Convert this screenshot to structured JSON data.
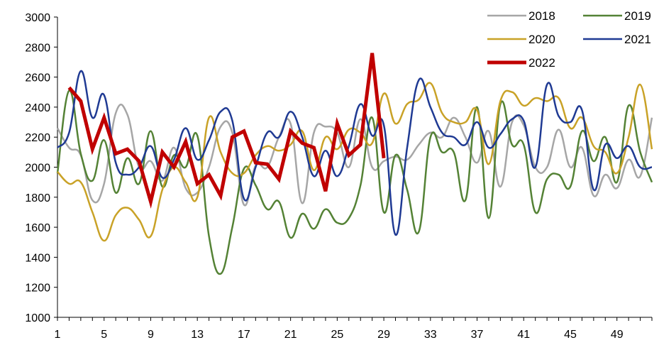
{
  "chart_data": {
    "type": "line",
    "title": "",
    "xlabel": "",
    "ylabel": "",
    "ylim": [
      1000,
      3000
    ],
    "yticks": [
      1000,
      1200,
      1400,
      1600,
      1800,
      2000,
      2200,
      2400,
      2600,
      2800,
      3000
    ],
    "xlim": [
      1,
      52
    ],
    "xticks": [
      1,
      5,
      9,
      13,
      17,
      21,
      25,
      29,
      33,
      37,
      41,
      45,
      49
    ],
    "grid": false,
    "legend": "top-right",
    "series": [
      {
        "name": "2018",
        "color": "#a6a6a6",
        "width": 2.5,
        "smooth": true,
        "x": [
          1,
          2,
          3,
          4,
          5,
          6,
          7,
          8,
          9,
          10,
          11,
          12,
          13,
          14,
          15,
          16,
          17,
          18,
          19,
          20,
          21,
          22,
          23,
          24,
          25,
          26,
          27,
          28,
          29,
          30,
          31,
          32,
          33,
          34,
          35,
          36,
          37,
          38,
          39,
          40,
          41,
          42,
          43,
          44,
          45,
          46,
          47,
          48,
          49,
          50,
          51,
          52
        ],
        "values": [
          2260,
          2130,
          2080,
          1780,
          1890,
          2360,
          2350,
          2000,
          2040,
          1910,
          2130,
          1860,
          1830,
          2000,
          2270,
          2230,
          1750,
          2010,
          2000,
          2200,
          2290,
          1760,
          2230,
          2270,
          2230,
          2000,
          2320,
          2000,
          2040,
          2070,
          2050,
          2150,
          2230,
          2200,
          2330,
          2200,
          2030,
          2240,
          1870,
          2300,
          2280,
          2000,
          2000,
          2250,
          2000,
          2130,
          1810,
          1950,
          1860,
          2050,
          1940,
          2330
        ]
      },
      {
        "name": "2019",
        "color": "#548235",
        "width": 2.5,
        "smooth": true,
        "x": [
          1,
          2,
          3,
          4,
          5,
          6,
          7,
          8,
          9,
          10,
          11,
          12,
          13,
          14,
          15,
          16,
          17,
          18,
          19,
          20,
          21,
          22,
          23,
          24,
          25,
          26,
          27,
          28,
          29,
          30,
          31,
          32,
          33,
          34,
          35,
          36,
          37,
          38,
          39,
          40,
          41,
          42,
          43,
          44,
          45,
          46,
          47,
          48,
          49,
          50,
          51,
          52
        ],
        "values": [
          1960,
          2510,
          2090,
          1910,
          2180,
          1830,
          2060,
          1890,
          2240,
          1870,
          2080,
          2000,
          2210,
          1540,
          1290,
          1600,
          1990,
          1880,
          1720,
          1770,
          1530,
          1690,
          1590,
          1720,
          1630,
          1660,
          1880,
          2330,
          1700,
          2080,
          1850,
          1570,
          2200,
          2100,
          2100,
          1780,
          2400,
          1660,
          2420,
          2150,
          2150,
          1700,
          1920,
          1950,
          1870,
          2240,
          2040,
          2200,
          1900,
          2410,
          2100,
          1900
        ]
      },
      {
        "name": "2020",
        "color": "#c9a227",
        "width": 2.5,
        "smooth": true,
        "x": [
          1,
          2,
          3,
          4,
          5,
          6,
          7,
          8,
          9,
          10,
          11,
          12,
          13,
          14,
          15,
          16,
          17,
          18,
          19,
          20,
          21,
          22,
          23,
          24,
          25,
          26,
          27,
          28,
          29,
          30,
          31,
          32,
          33,
          34,
          35,
          36,
          37,
          38,
          39,
          40,
          41,
          42,
          43,
          44,
          45,
          46,
          47,
          48,
          49,
          50,
          51,
          52
        ],
        "values": [
          1970,
          1890,
          1900,
          1700,
          1510,
          1680,
          1730,
          1650,
          1540,
          1850,
          2000,
          1900,
          1800,
          2330,
          2100,
          1960,
          1960,
          2080,
          2140,
          2110,
          2150,
          2240,
          1980,
          2200,
          2120,
          2250,
          2230,
          2160,
          2490,
          2290,
          2420,
          2450,
          2560,
          2360,
          2300,
          2300,
          2380,
          2020,
          2440,
          2500,
          2410,
          2460,
          2440,
          2460,
          2260,
          2330,
          2140,
          2100,
          1960,
          2200,
          2550,
          2120
        ]
      },
      {
        "name": "2021",
        "color": "#1f3a93",
        "width": 2.5,
        "smooth": true,
        "x": [
          1,
          2,
          3,
          4,
          5,
          6,
          7,
          8,
          9,
          10,
          11,
          12,
          13,
          14,
          15,
          16,
          17,
          18,
          19,
          20,
          21,
          22,
          23,
          24,
          25,
          26,
          27,
          28,
          29,
          30,
          31,
          32,
          33,
          34,
          35,
          36,
          37,
          38,
          39,
          40,
          41,
          42,
          43,
          44,
          45,
          46,
          47,
          48,
          49,
          50,
          51,
          52
        ],
        "values": [
          2130,
          2230,
          2640,
          2330,
          2480,
          2030,
          1950,
          2000,
          2140,
          1930,
          2050,
          2260,
          2050,
          2180,
          2370,
          2310,
          1790,
          2000,
          2230,
          2200,
          2370,
          2200,
          1940,
          2110,
          1940,
          2140,
          2420,
          2210,
          2280,
          1550,
          2130,
          2580,
          2400,
          2230,
          2200,
          2150,
          2300,
          2130,
          2220,
          2320,
          2310,
          2000,
          2550,
          2340,
          2300,
          2380,
          1850,
          2150,
          2060,
          2140,
          2000,
          2000
        ]
      },
      {
        "name": "2022",
        "color": "#c00000",
        "width": 5,
        "smooth": false,
        "x": [
          2,
          3,
          4,
          5,
          6,
          7,
          8,
          9,
          10,
          11,
          12,
          13,
          14,
          15,
          16,
          17,
          18,
          19,
          20,
          21,
          22,
          23,
          24,
          25,
          26,
          27,
          28,
          29
        ],
        "values": [
          2530,
          2440,
          2120,
          2330,
          2090,
          2120,
          2040,
          1770,
          2100,
          2000,
          2170,
          1890,
          1950,
          1810,
          2200,
          2240,
          2030,
          2020,
          1920,
          2240,
          2160,
          2130,
          1840,
          2290,
          2080,
          2150,
          2760,
          2060
        ]
      }
    ]
  }
}
